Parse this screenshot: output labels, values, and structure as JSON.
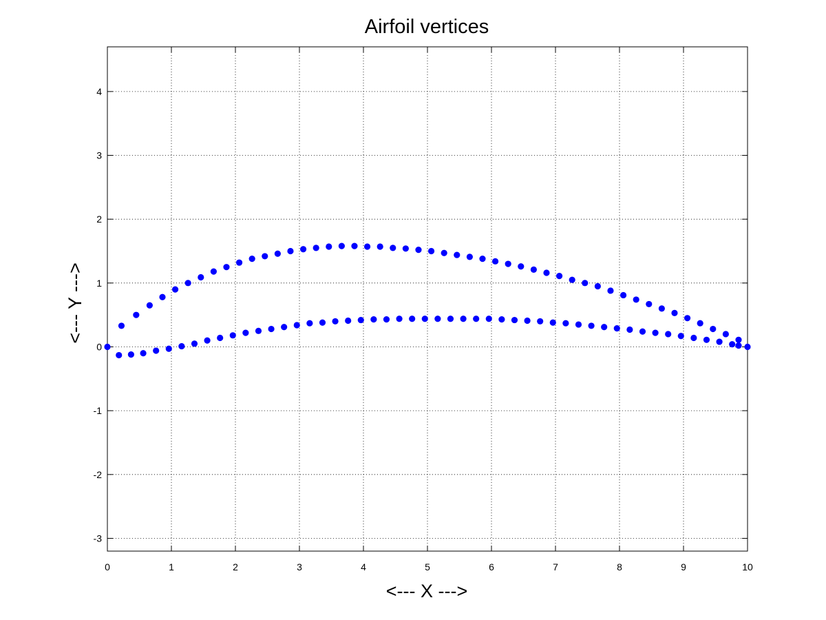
{
  "chart_data": {
    "type": "scatter",
    "title": "Airfoil vertices",
    "xlabel": "<--- X --->",
    "ylabel": "<--- Y --->",
    "xlim": [
      0,
      10
    ],
    "ylim": [
      -3.2,
      4.7
    ],
    "xticks": [
      0,
      1,
      2,
      3,
      4,
      5,
      6,
      7,
      8,
      9,
      10
    ],
    "yticks": [
      -3,
      -2,
      -1,
      0,
      1,
      2,
      3,
      4
    ],
    "grid": true,
    "marker_color": "#0000ff",
    "series": [
      {
        "name": "",
        "points": [
          [
            0,
            0
          ],
          [
            0.22,
            0.33
          ],
          [
            0.45,
            0.5
          ],
          [
            0.66,
            0.65
          ],
          [
            0.86,
            0.78
          ],
          [
            1.06,
            0.9
          ],
          [
            1.26,
            1.0
          ],
          [
            1.46,
            1.09
          ],
          [
            1.66,
            1.18
          ],
          [
            1.86,
            1.25
          ],
          [
            2.06,
            1.32
          ],
          [
            2.26,
            1.38
          ],
          [
            2.46,
            1.42
          ],
          [
            2.66,
            1.46
          ],
          [
            2.86,
            1.5
          ],
          [
            3.06,
            1.53
          ],
          [
            3.26,
            1.55
          ],
          [
            3.46,
            1.57
          ],
          [
            3.66,
            1.58
          ],
          [
            3.86,
            1.58
          ],
          [
            4.06,
            1.57
          ],
          [
            4.26,
            1.57
          ],
          [
            4.46,
            1.55
          ],
          [
            4.66,
            1.54
          ],
          [
            4.86,
            1.52
          ],
          [
            5.06,
            1.5
          ],
          [
            5.26,
            1.47
          ],
          [
            5.46,
            1.44
          ],
          [
            5.66,
            1.41
          ],
          [
            5.86,
            1.38
          ],
          [
            6.06,
            1.34
          ],
          [
            6.26,
            1.3
          ],
          [
            6.46,
            1.26
          ],
          [
            6.66,
            1.21
          ],
          [
            6.86,
            1.16
          ],
          [
            7.06,
            1.11
          ],
          [
            7.26,
            1.05
          ],
          [
            7.46,
            1.0
          ],
          [
            7.66,
            0.95
          ],
          [
            7.86,
            0.88
          ],
          [
            8.06,
            0.81
          ],
          [
            8.26,
            0.74
          ],
          [
            8.46,
            0.67
          ],
          [
            8.66,
            0.6
          ],
          [
            8.86,
            0.53
          ],
          [
            9.06,
            0.45
          ],
          [
            9.26,
            0.37
          ],
          [
            9.46,
            0.28
          ],
          [
            9.66,
            0.2
          ],
          [
            9.86,
            0.11
          ],
          [
            10,
            0
          ],
          [
            0.18,
            -0.13
          ],
          [
            0.37,
            -0.12
          ],
          [
            0.56,
            -0.1
          ],
          [
            0.76,
            -0.06
          ],
          [
            0.96,
            -0.03
          ],
          [
            1.16,
            0.01
          ],
          [
            1.36,
            0.05
          ],
          [
            1.56,
            0.1
          ],
          [
            1.76,
            0.14
          ],
          [
            1.96,
            0.18
          ],
          [
            2.16,
            0.22
          ],
          [
            2.36,
            0.25
          ],
          [
            2.56,
            0.28
          ],
          [
            2.76,
            0.31
          ],
          [
            2.96,
            0.34
          ],
          [
            3.16,
            0.37
          ],
          [
            3.36,
            0.38
          ],
          [
            3.56,
            0.4
          ],
          [
            3.76,
            0.41
          ],
          [
            3.96,
            0.42
          ],
          [
            4.16,
            0.43
          ],
          [
            4.36,
            0.43
          ],
          [
            4.56,
            0.44
          ],
          [
            4.76,
            0.44
          ],
          [
            4.96,
            0.44
          ],
          [
            5.16,
            0.44
          ],
          [
            5.36,
            0.44
          ],
          [
            5.56,
            0.44
          ],
          [
            5.76,
            0.44
          ],
          [
            5.96,
            0.44
          ],
          [
            6.16,
            0.43
          ],
          [
            6.36,
            0.42
          ],
          [
            6.56,
            0.41
          ],
          [
            6.76,
            0.4
          ],
          [
            6.96,
            0.38
          ],
          [
            7.16,
            0.37
          ],
          [
            7.36,
            0.35
          ],
          [
            7.56,
            0.33
          ],
          [
            7.76,
            0.31
          ],
          [
            7.96,
            0.29
          ],
          [
            8.16,
            0.27
          ],
          [
            8.36,
            0.24
          ],
          [
            8.56,
            0.22
          ],
          [
            8.76,
            0.2
          ],
          [
            8.96,
            0.17
          ],
          [
            9.16,
            0.14
          ],
          [
            9.36,
            0.11
          ],
          [
            9.56,
            0.08
          ],
          [
            9.76,
            0.04
          ],
          [
            9.86,
            0.02
          ]
        ]
      }
    ]
  }
}
